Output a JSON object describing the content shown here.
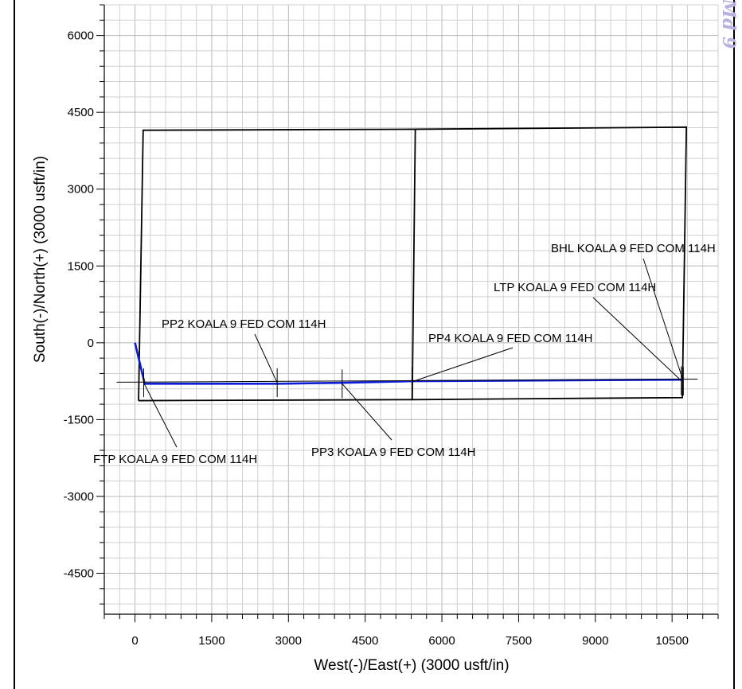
{
  "stamp_text": "Md 9",
  "chart_data": {
    "type": "line",
    "title": "",
    "xlabel": "West(-)/East(+) (3000 usft/in)",
    "ylabel": "South(-)/North(+) (3000 usft/in)",
    "xlim": [
      -600,
      11400
    ],
    "ylim": [
      -5300,
      6600
    ],
    "x_ticks": [
      0,
      1500,
      3000,
      4500,
      6000,
      7500,
      9000,
      10500
    ],
    "x_tick_labels": [
      "0",
      "1500",
      "3000",
      "4500",
      "6000",
      "7500",
      "9000",
      "10500"
    ],
    "y_ticks": [
      6000,
      4500,
      3000,
      1500,
      0,
      -1500,
      -3000,
      -4500
    ],
    "y_tick_labels": [
      "6000",
      "4500",
      "3000",
      "1500",
      "0",
      "-1500",
      "-3000",
      "-4500"
    ],
    "grid": true,
    "grid_minor_step": 300,
    "series": [
      {
        "name": "",
        "color": "#0a1ed8",
        "x": [
          0,
          190,
          2800,
          4120,
          5420,
          10700
        ],
        "y": [
          0,
          -800,
          -800,
          -780,
          -750,
          -720
        ]
      }
    ],
    "lease_boundaries": [
      {
        "x": [
          70,
          160,
          5480,
          10780,
          10700,
          5420,
          70
        ],
        "y": [
          -1130,
          4150,
          4170,
          4210,
          -1070,
          -1110,
          -1130
        ]
      },
      {
        "x": [
          5420,
          5480
        ],
        "y": [
          -1110,
          4170
        ]
      }
    ],
    "annotations": [
      {
        "label": "BHL KOALA 9 FED COM 114H",
        "x": 10720,
        "y": -750
      },
      {
        "label": "LTP KOALA 9 FED COM 114H",
        "x": 10680,
        "y": -740
      },
      {
        "label": "PP4 KOALA 9 FED COM 114H",
        "x": 5420,
        "y": -760
      },
      {
        "label": "PP2 KOALA 9 FED COM 114H",
        "x": 2780,
        "y": -780
      },
      {
        "label": "PP3 KOALA 9 FED COM 114H",
        "x": 4050,
        "y": -800
      },
      {
        "label": "FTP KOALA 9 FED COM 114H",
        "x": 170,
        "y": -780
      }
    ]
  }
}
